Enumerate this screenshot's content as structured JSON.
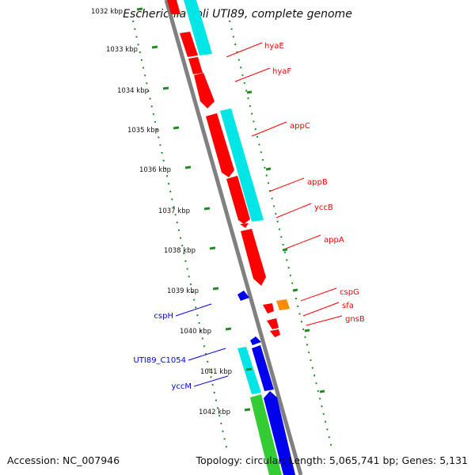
{
  "title": "Escherichia coli UTI89, complete genome",
  "footer": {
    "accession": "Accession: NC_007946",
    "summary": "Topology: circular; Length: 5,065,741 bp; Genes: 5,131"
  },
  "colors": {
    "forward_cds": "#ff0000",
    "reverse_cds": "#0000ee",
    "orf": "#00e5e5",
    "rna": "#ff8c00",
    "green_feature": "#33cc33",
    "tick": "#228b22",
    "backbone": "#808080"
  },
  "ticks": [
    {
      "label": "1032 kbp"
    },
    {
      "label": "1033 kbp"
    },
    {
      "label": "1034 kbp"
    },
    {
      "label": "1035 kbp"
    },
    {
      "label": "1036 kbp"
    },
    {
      "label": "1037 kbp"
    },
    {
      "label": "1038 kbp"
    },
    {
      "label": "1039 kbp"
    },
    {
      "label": "1040 kbp"
    },
    {
      "label": "1041 kbp"
    },
    {
      "label": "1042 kbp"
    }
  ],
  "labels_right": [
    {
      "text": "hyaE"
    },
    {
      "text": "hyaF"
    },
    {
      "text": "appC"
    },
    {
      "text": "appB"
    },
    {
      "text": "yccB"
    },
    {
      "text": "appA"
    },
    {
      "text": "cspG"
    },
    {
      "text": "sfa"
    },
    {
      "text": "gnsB"
    }
  ],
  "labels_left": [
    {
      "text": "cspH"
    },
    {
      "text": "UTI89_C1054"
    },
    {
      "text": "yccM"
    }
  ]
}
